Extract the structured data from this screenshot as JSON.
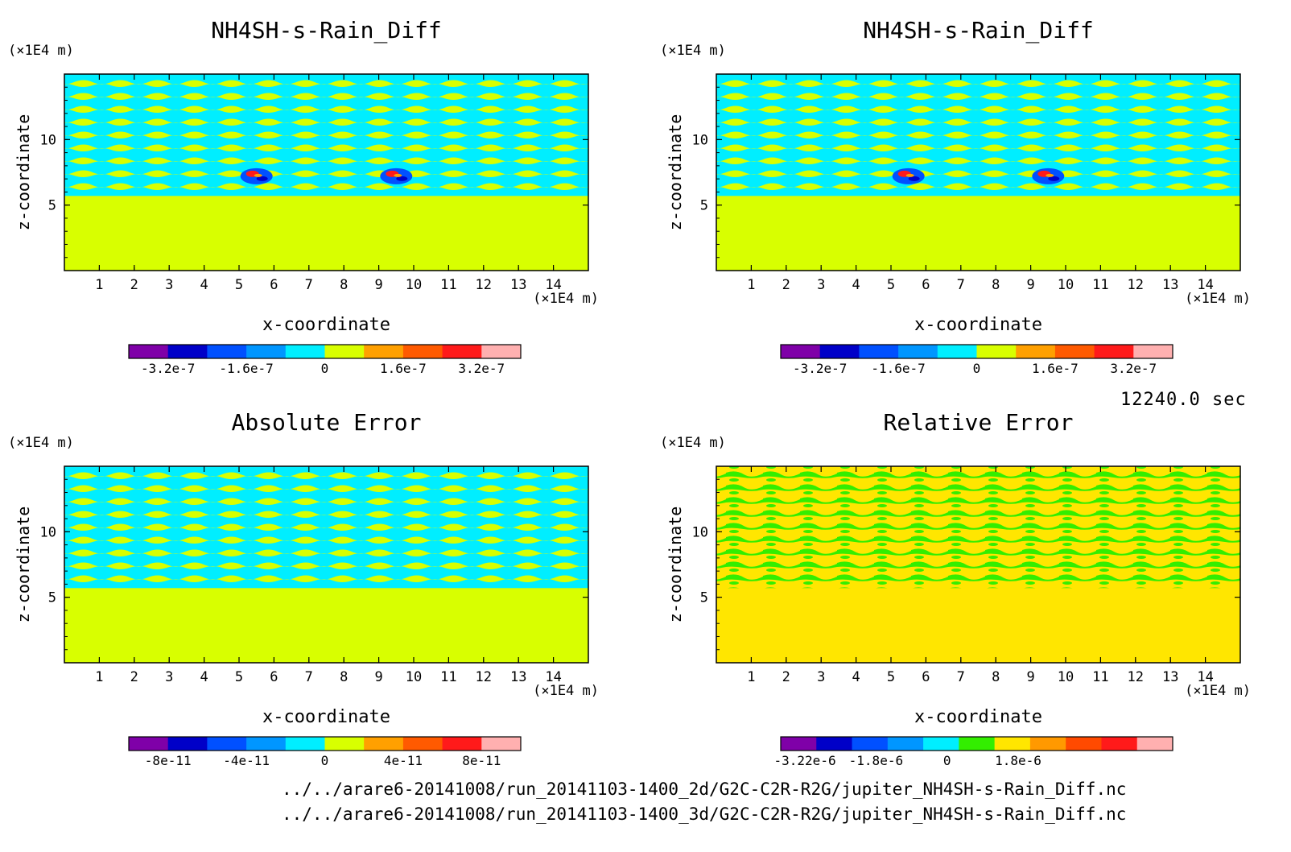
{
  "chart_data": [
    {
      "type": "heatmap",
      "title": "NH4SH-s-Rain_Diff",
      "xlabel": "x-coordinate",
      "ylabel": "z-coordinate",
      "x_unit": "(×1E4 m)",
      "y_unit": "(×1E4 m)",
      "xlim": [
        0,
        15
      ],
      "ylim": [
        0,
        15
      ],
      "xticks": [
        "1",
        "2",
        "3",
        "4",
        "5",
        "6",
        "7",
        "8",
        "9",
        "10",
        "11",
        "12",
        "13",
        "14"
      ],
      "yticks": [
        "5",
        "10"
      ],
      "colorbar": {
        "colors": [
          "#7f00a8",
          "#0000c8",
          "#0050ff",
          "#0096ff",
          "#00eeff",
          "#d8ff00",
          "#ffa000",
          "#ff5a00",
          "#ff1a1a",
          "#ffb0b0"
        ],
        "labels": [
          "-3.2e-7",
          "-1.6e-7",
          "0",
          "1.6e-7",
          "3.2e-7"
        ]
      }
    },
    {
      "type": "heatmap",
      "title": "NH4SH-s-Rain_Diff",
      "xlabel": "x-coordinate",
      "ylabel": "z-coordinate",
      "x_unit": "(×1E4 m)",
      "y_unit": "(×1E4 m)",
      "xlim": [
        0,
        15
      ],
      "ylim": [
        0,
        15
      ],
      "xticks": [
        "1",
        "2",
        "3",
        "4",
        "5",
        "6",
        "7",
        "8",
        "9",
        "10",
        "11",
        "12",
        "13",
        "14"
      ],
      "yticks": [
        "5",
        "10"
      ],
      "colorbar": {
        "colors": [
          "#7f00a8",
          "#0000c8",
          "#0050ff",
          "#0096ff",
          "#00eeff",
          "#d8ff00",
          "#ffa000",
          "#ff5a00",
          "#ff1a1a",
          "#ffb0b0"
        ],
        "labels": [
          "-3.2e-7",
          "-1.6e-7",
          "0",
          "1.6e-7",
          "3.2e-7"
        ]
      }
    },
    {
      "type": "heatmap",
      "title": "Absolute Error",
      "xlabel": "x-coordinate",
      "ylabel": "z-coordinate",
      "x_unit": "(×1E4 m)",
      "y_unit": "(×1E4 m)",
      "xlim": [
        0,
        15
      ],
      "ylim": [
        0,
        15
      ],
      "xticks": [
        "1",
        "2",
        "3",
        "4",
        "5",
        "6",
        "7",
        "8",
        "9",
        "10",
        "11",
        "12",
        "13",
        "14"
      ],
      "yticks": [
        "5",
        "10"
      ],
      "colorbar": {
        "colors": [
          "#7f00a8",
          "#0000c8",
          "#0050ff",
          "#0096ff",
          "#00eeff",
          "#d8ff00",
          "#ffa000",
          "#ff5a00",
          "#ff1a1a",
          "#ffb0b0"
        ],
        "labels": [
          "-8e-11",
          "-4e-11",
          "0",
          "4e-11",
          "8e-11"
        ]
      }
    },
    {
      "type": "heatmap",
      "title": "Relative Error",
      "xlabel": "x-coordinate",
      "ylabel": "z-coordinate",
      "x_unit": "(×1E4 m)",
      "y_unit": "(×1E4 m)",
      "xlim": [
        0,
        15
      ],
      "ylim": [
        0,
        15
      ],
      "xticks": [
        "1",
        "2",
        "3",
        "4",
        "5",
        "6",
        "7",
        "8",
        "9",
        "10",
        "11",
        "12",
        "13",
        "14"
      ],
      "yticks": [
        "5",
        "10"
      ],
      "colorbar": {
        "colors": [
          "#7f00a8",
          "#0000c8",
          "#0050ff",
          "#0096ff",
          "#00eeff",
          "#33ee00",
          "#ffe600",
          "#ff9900",
          "#ff4a00",
          "#ff1a1a",
          "#ffb0b0"
        ],
        "labels": [
          "-3.22e-6",
          "-1.8e-6",
          "0",
          "1.8e-6"
        ]
      }
    }
  ],
  "time_label": "12240.0 sec",
  "file_paths": [
    "../../arare6-20141008/run_20141103-1400_2d/G2C-C2R-R2G/jupiter_NH4SH-s-Rain_Diff.nc",
    "../../arare6-20141008/run_20141103-1400_3d/G2C-C2R-R2G/jupiter_NH4SH-s-Rain_Diff.nc"
  ],
  "colors": {
    "cyan": "#00eeff",
    "yellowgreen": "#d8ff00",
    "green": "#33ee00",
    "yellow": "#ffe600"
  }
}
